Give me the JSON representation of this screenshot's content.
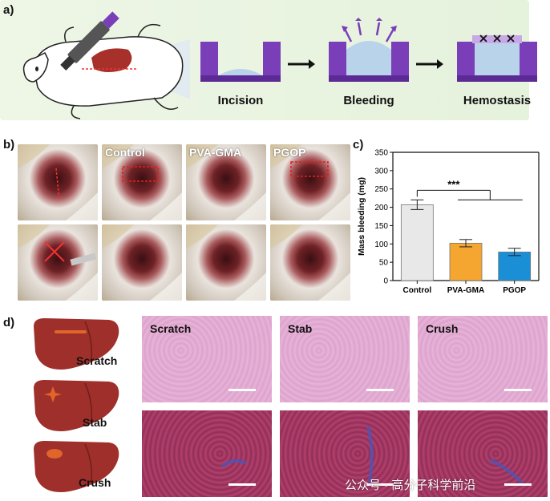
{
  "panels": {
    "a": "a)",
    "b": "b)",
    "c": "c)",
    "d": "d)"
  },
  "panel_a": {
    "steps": [
      "Incision",
      "Bleeding",
      "Hemostasis"
    ]
  },
  "panel_b": {
    "column_labels": [
      "",
      "Control",
      "PVA-GMA",
      "PGOP"
    ]
  },
  "chart_data": {
    "type": "bar",
    "categories": [
      "Control",
      "PVA-GMA",
      "PGOP"
    ],
    "values": [
      207,
      102,
      78
    ],
    "errors": [
      13,
      10,
      10
    ],
    "colors": [
      "#e8e8e8",
      "#f4a630",
      "#1a8fd6"
    ],
    "ylabel": "Mass bleeding (mg)",
    "ylim": [
      0,
      350
    ],
    "yticks": [
      0,
      50,
      100,
      150,
      200,
      250,
      300,
      350
    ],
    "significance": "***"
  },
  "panel_d": {
    "liver_labels": [
      "Scratch",
      "Stab",
      "Crush"
    ],
    "histo_labels": [
      "Scratch",
      "Stab",
      "Crush"
    ],
    "colors": {
      "liver": "#9e2f2a",
      "lesion": "#e0652a",
      "he_stain": "#e8b4d8",
      "masson": "#b5406a"
    }
  },
  "watermark": "公众号 · 高分子科学前沿"
}
